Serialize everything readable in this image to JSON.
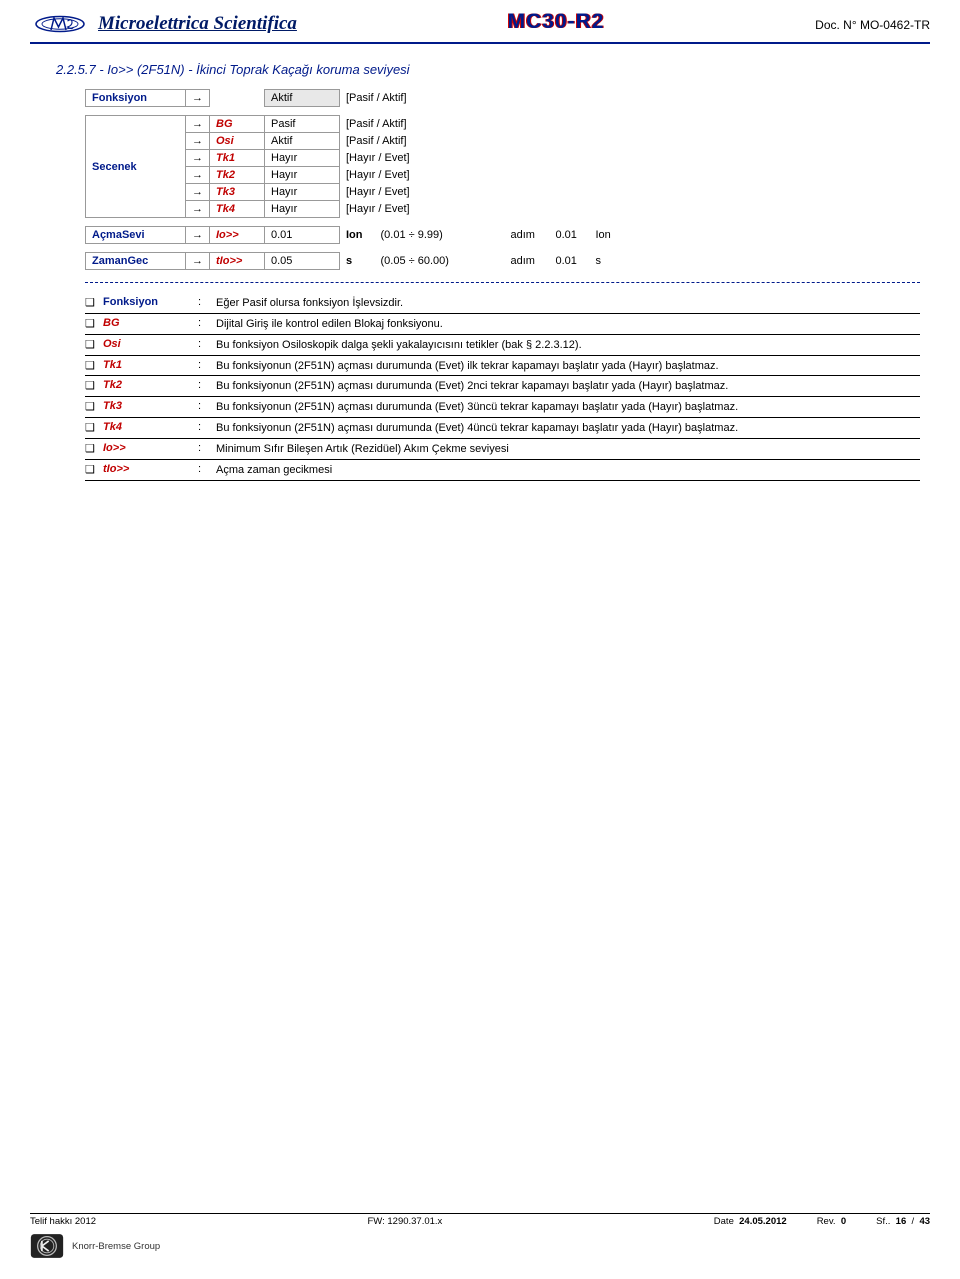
{
  "header": {
    "brand": "Microelettrica Scientifica",
    "product": "MC30-R2",
    "docnum": "Doc. N° MO-0462-TR"
  },
  "section_title": "2.2.5.7 - Io>> (2F51N) - İkinci Toprak Kaçağı koruma seviyesi",
  "fonksiyon_row": {
    "label": "Fonksiyon",
    "arrow": "→",
    "value": "Aktif",
    "option": "[Pasif / Aktif]"
  },
  "secenek": {
    "label": "Secenek",
    "arrow": "→",
    "rows": [
      {
        "param": "BG",
        "value": "Pasif",
        "option": "[Pasif / Aktif]"
      },
      {
        "param": "Osi",
        "value": "Aktif",
        "option": "[Pasif / Aktif]"
      },
      {
        "param": "Tk1",
        "value": "Hayır",
        "option": "[Hayır / Evet]"
      },
      {
        "param": "Tk2",
        "value": "Hayır",
        "option": "[Hayır / Evet]"
      },
      {
        "param": "Tk3",
        "value": "Hayır",
        "option": "[Hayır / Evet]"
      },
      {
        "param": "Tk4",
        "value": "Hayır",
        "option": "[Hayır / Evet]"
      }
    ]
  },
  "acmasevi": {
    "label": "AçmaSevi",
    "arrow": "→",
    "param": "Io>>",
    "value": "0.01",
    "unit": "Ion",
    "range": "(0.01 ÷ 9.99)",
    "step_label": "adım",
    "step_value": "0.01",
    "step_unit": "Ion"
  },
  "zamangec": {
    "label": "ZamanGec",
    "arrow": "→",
    "param": "tIo>>",
    "value": "0.05",
    "unit": "s",
    "range": "(0.05 ÷ 60.00)",
    "step_label": "adım",
    "step_value": "0.01",
    "step_unit": "s"
  },
  "descriptions": [
    {
      "key": "Fonksiyon",
      "cls": "fk",
      "text": "Eğer Pasif olursa fonksiyon İşlevsizdir."
    },
    {
      "key": "BG",
      "text": "Dijital Giriş ile kontrol edilen Blokaj fonksiyonu."
    },
    {
      "key": "Osi",
      "text": "Bu fonksiyon Osiloskopik dalga şekli yakalayıcısını tetikler (bak § 2.2.3.12)."
    },
    {
      "key": "Tk1",
      "text": "Bu fonksiyonun (2F51N) açması durumunda (Evet) ilk tekrar kapamayı başlatır yada (Hayır) başlatmaz."
    },
    {
      "key": "Tk2",
      "text": "Bu fonksiyonun (2F51N) açması durumunda (Evet) 2nci tekrar kapamayı başlatır yada (Hayır) başlatmaz."
    },
    {
      "key": "Tk3",
      "text": "Bu fonksiyonun (2F51N) açması durumunda (Evet) 3üncü tekrar kapamayı başlatır yada (Hayır) başlatmaz."
    },
    {
      "key": "Tk4",
      "text": "Bu fonksiyonun (2F51N) açması durumunda (Evet) 4üncü tekrar kapamayı başlatır yada (Hayır) başlatmaz."
    },
    {
      "key": "Io>>",
      "text": "Minimum Sıfır Bileşen Artık (Rezidüel) Akım Çekme seviyesi"
    },
    {
      "key": "tIo>>",
      "text": "Açma zaman gecikmesi"
    }
  ],
  "footer": {
    "copyright": "Telif hakkı 2012",
    "fw_label": "FW:",
    "fw": "1290.37.01.x",
    "date_label": "Date",
    "date": "24.05.2012",
    "rev_label": "Rev.",
    "rev": "0",
    "page_label": "Sf..",
    "page": "16",
    "sep": "/",
    "total": "43",
    "group": "Knorr-Bremse Group"
  },
  "colors": {
    "brand_blue": "#001a8a",
    "param_red": "#c00000",
    "border_gray": "#999999"
  }
}
